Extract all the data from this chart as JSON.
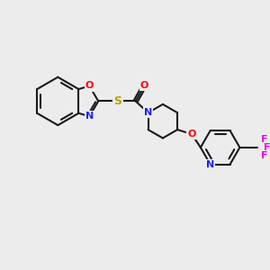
{
  "bg": "#ececec",
  "bond_color": "#1a1a1a",
  "colors": {
    "O": "#ff0000",
    "N": "#2222ee",
    "S": "#b8a000",
    "F": "#ee00ee",
    "C": "#1a1a1a"
  },
  "lw": 1.5,
  "fs": 8.5,
  "dpi": 100,
  "figsize": [
    3.0,
    3.0
  ]
}
